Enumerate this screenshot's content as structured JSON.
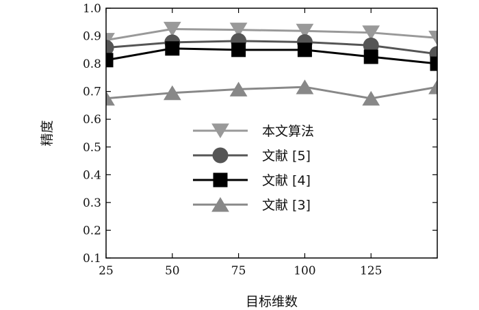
{
  "chart_data": {
    "type": "line",
    "title": "",
    "xlabel": "目标维数",
    "ylabel": "精度",
    "x": [
      25,
      50,
      75,
      100,
      125,
      150
    ],
    "x_tick_labels": [
      "25",
      "50",
      "75",
      "100",
      "125"
    ],
    "y_tick_labels": [
      "0.1",
      "0.2",
      "0.3",
      "0.4",
      "0.5",
      "0.6",
      "0.7",
      "0.8",
      "0.9",
      "1.0"
    ],
    "xlim": [
      25,
      150
    ],
    "ylim": [
      0.1,
      1.0
    ],
    "grid": false,
    "legend_position": "center",
    "series": [
      {
        "name": "本文算法",
        "marker": "triangle-down",
        "color": "#999999",
        "values": [
          0.885,
          0.925,
          0.922,
          0.918,
          0.912,
          0.893
        ]
      },
      {
        "name": "文献 [5]",
        "marker": "circle",
        "color": "#555555",
        "values": [
          0.858,
          0.877,
          0.882,
          0.878,
          0.866,
          0.835
        ]
      },
      {
        "name": "文献 [4]",
        "marker": "square",
        "color": "#000000",
        "values": [
          0.813,
          0.855,
          0.85,
          0.85,
          0.825,
          0.8
        ]
      },
      {
        "name": "文献 [3]",
        "marker": "triangle-up",
        "color": "#888888",
        "values": [
          0.675,
          0.695,
          0.708,
          0.716,
          0.675,
          0.716
        ]
      }
    ]
  }
}
